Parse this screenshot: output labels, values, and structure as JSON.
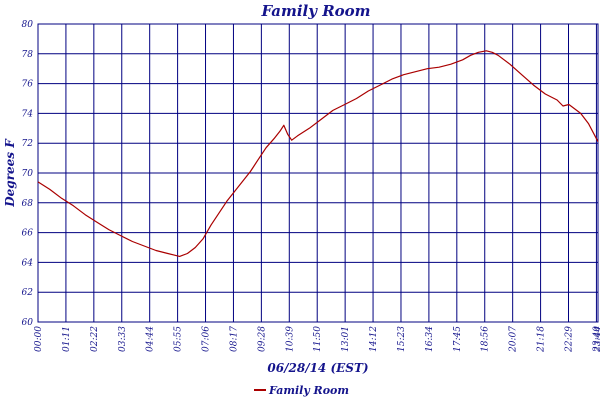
{
  "chart_data": {
    "type": "line",
    "title": "Family Room",
    "xlabel": "06/28/14 (EST)",
    "ylabel": "Degrees F",
    "ylim": [
      60,
      80
    ],
    "yticks": [
      60,
      62,
      64,
      66,
      68,
      70,
      72,
      74,
      76,
      78,
      80
    ],
    "xlim": [
      "00:00",
      "23:44"
    ],
    "xticks": [
      "00:00",
      "01:11",
      "02:22",
      "03:33",
      "04:44",
      "05:55",
      "07:06",
      "08:17",
      "09:28",
      "10:39",
      "11:50",
      "13:01",
      "14:12",
      "15:23",
      "16:34",
      "17:45",
      "18:56",
      "20:07",
      "21:18",
      "22:29",
      "23:40",
      "23:44"
    ],
    "grid": true,
    "legend_position": "bottom",
    "colors": {
      "series": "#aa0000",
      "grid": "#000080",
      "text": "#14148c"
    },
    "series": [
      {
        "name": "Family Room",
        "x": [
          "00:00",
          "00:30",
          "01:00",
          "01:30",
          "02:00",
          "02:30",
          "03:00",
          "03:30",
          "04:00",
          "04:30",
          "05:00",
          "05:30",
          "05:45",
          "06:00",
          "06:20",
          "06:40",
          "07:00",
          "07:20",
          "07:40",
          "08:00",
          "08:30",
          "09:00",
          "09:20",
          "09:40",
          "10:00",
          "10:15",
          "10:25",
          "10:35",
          "10:45",
          "11:00",
          "11:30",
          "12:00",
          "12:30",
          "13:00",
          "13:30",
          "14:00",
          "14:30",
          "15:00",
          "15:30",
          "16:00",
          "16:30",
          "17:00",
          "17:30",
          "18:00",
          "18:20",
          "18:40",
          "19:00",
          "19:15",
          "19:30",
          "20:00",
          "20:30",
          "21:00",
          "21:30",
          "22:00",
          "22:15",
          "22:30",
          "23:00",
          "23:20",
          "23:44"
        ],
        "values": [
          69.4,
          68.9,
          68.3,
          67.8,
          67.2,
          66.7,
          66.2,
          65.8,
          65.4,
          65.1,
          64.8,
          64.6,
          64.5,
          64.4,
          64.6,
          65.0,
          65.6,
          66.5,
          67.3,
          68.1,
          69.1,
          70.1,
          70.9,
          71.7,
          72.3,
          72.8,
          73.2,
          72.6,
          72.2,
          72.5,
          73.0,
          73.6,
          74.2,
          74.6,
          75.0,
          75.5,
          75.9,
          76.3,
          76.6,
          76.8,
          77.0,
          77.1,
          77.3,
          77.6,
          77.9,
          78.1,
          78.2,
          78.1,
          77.9,
          77.3,
          76.6,
          75.9,
          75.3,
          74.9,
          74.5,
          74.6,
          74.0,
          73.3,
          72.1
        ]
      }
    ]
  }
}
